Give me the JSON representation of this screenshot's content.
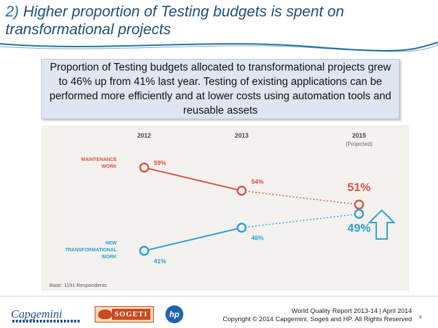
{
  "slide": {
    "title_number": "2)",
    "title_text": "Higher proportion of Testing budgets is spent on transformational projects",
    "callout": "Proportion of Testing budgets allocated to transformational projects grew to 46% up from 41% last year.  Testing of existing applications can be performed more efficiently and at lower costs using automation tools and reusable assets",
    "footer_line1": "World Quality Report 2013-14 | April 2014",
    "footer_line2": "Copyright © 2014 Capgemini, Sogeti and HP. All Rights Reserved",
    "page_number": "8",
    "logos": {
      "capgemini": "Capgemini",
      "sogeti": "SOGETI",
      "hp": "hp"
    }
  },
  "colors": {
    "maintenance": "#d9534a",
    "transformational": "#2e9fd3",
    "title_accent": "#1f6fa6",
    "panel_bg": "#f3f2ee"
  },
  "chart_data": {
    "type": "line",
    "x": [
      "2012",
      "2013",
      "2015"
    ],
    "x_sublabels": [
      "",
      "",
      "(Projected)"
    ],
    "series": [
      {
        "name": "MAINTENANCE WORK",
        "values": [
          59,
          54,
          51
        ],
        "labels": [
          "59%",
          "54%",
          "51%"
        ],
        "projected_from_index": 1,
        "color": "#d9534a"
      },
      {
        "name": "NEW TRANSFORMATIONAL WORK",
        "values": [
          41,
          46,
          49
        ],
        "labels": [
          "41%",
          "46%",
          "49%"
        ],
        "projected_from_index": 1,
        "color": "#2e9fd3"
      }
    ],
    "annotation": "Base: 1191 Respondents",
    "arrow_icon": "up-arrow-icon"
  }
}
